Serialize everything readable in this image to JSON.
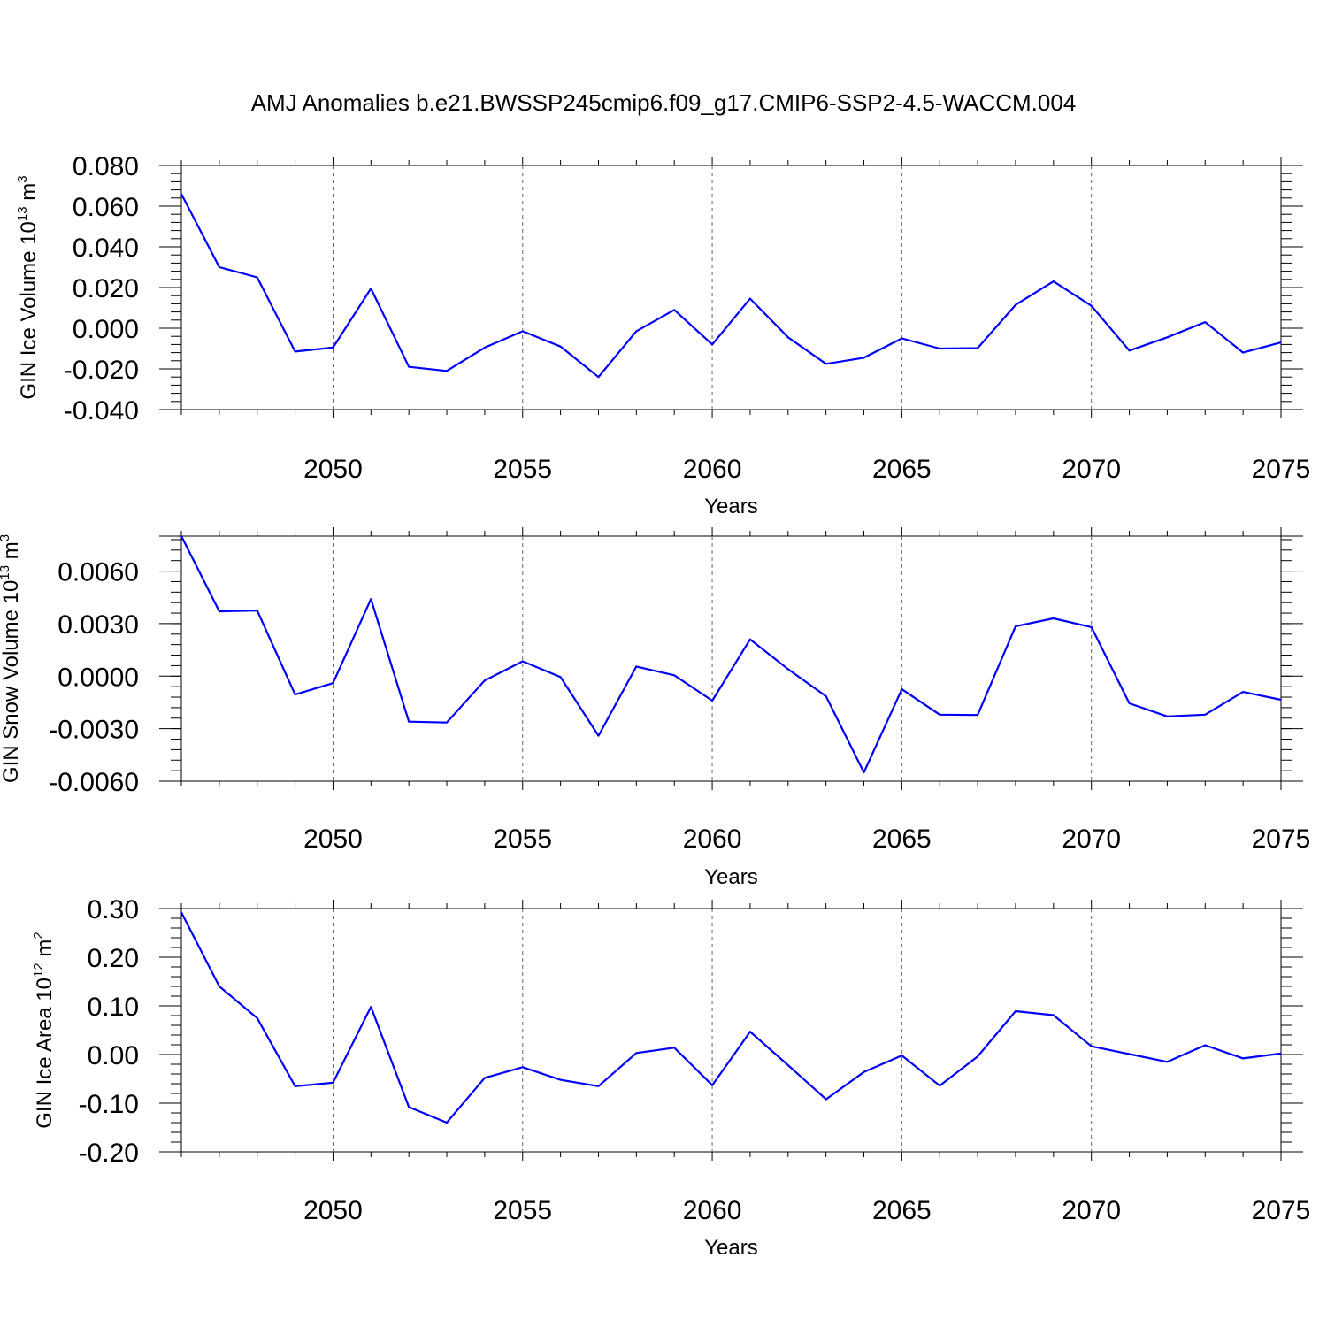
{
  "title": "AMJ Anomalies b.e21.BWSSP245cmip6.f09_g17.CMIP6-SSP2-4.5-WACCM.004",
  "line_color": "#0000ff",
  "chart_data": [
    {
      "type": "line",
      "ylabel_main": "GIN Ice Volume 10",
      "ylabel_exp": "13",
      "ylabel_unit": "m",
      "ylabel_unit_exp": "3",
      "xlabel": "Years",
      "xlim": [
        2046,
        2075
      ],
      "ylim": [
        -0.04,
        0.08
      ],
      "yticks": [
        0.08,
        0.06,
        0.04,
        0.02,
        0.0,
        -0.02,
        -0.04
      ],
      "ytick_labels": [
        "0.080",
        "0.060",
        "0.040",
        "0.020",
        "0.000",
        "-0.020",
        "-0.040"
      ],
      "xticks": [
        2050,
        2055,
        2060,
        2065,
        2070,
        2075
      ],
      "xtick_labels": [
        "2050",
        "2055",
        "2060",
        "2065",
        "2070",
        "2075"
      ],
      "x": [
        2046,
        2047,
        2048,
        2049,
        2050,
        2051,
        2052,
        2053,
        2054,
        2055,
        2056,
        2057,
        2058,
        2059,
        2060,
        2061,
        2062,
        2063,
        2064,
        2065,
        2066,
        2067,
        2068,
        2069,
        2070,
        2071,
        2072,
        2073,
        2074,
        2075
      ],
      "values": [
        0.066,
        0.03,
        0.025,
        -0.0115,
        -0.0095,
        0.0195,
        -0.019,
        -0.021,
        -0.0095,
        -0.0015,
        -0.009,
        -0.024,
        -0.0015,
        0.009,
        -0.008,
        0.0145,
        -0.0045,
        -0.0175,
        -0.0145,
        -0.005,
        -0.01,
        -0.0098,
        0.0115,
        0.023,
        0.011,
        -0.011,
        -0.0045,
        0.003,
        -0.012,
        -0.007
      ]
    },
    {
      "type": "line",
      "ylabel_main": "GIN Snow Volume 10",
      "ylabel_exp": "13",
      "ylabel_unit": "m",
      "ylabel_unit_exp": "3",
      "xlabel": "Years",
      "xlim": [
        2046,
        2075
      ],
      "ylim": [
        -0.006,
        0.008
      ],
      "yticks": [
        0.006,
        0.003,
        0.0,
        -0.003,
        -0.006
      ],
      "ytick_labels": [
        "0.0060",
        "0.0030",
        "0.0000",
        "-0.0030",
        "-0.0060"
      ],
      "xticks": [
        2050,
        2055,
        2060,
        2065,
        2070,
        2075
      ],
      "xtick_labels": [
        "2050",
        "2055",
        "2060",
        "2065",
        "2070",
        "2075"
      ],
      "x": [
        2046,
        2047,
        2048,
        2049,
        2050,
        2051,
        2052,
        2053,
        2054,
        2055,
        2056,
        2057,
        2058,
        2059,
        2060,
        2061,
        2062,
        2063,
        2064,
        2065,
        2066,
        2067,
        2068,
        2069,
        2070,
        2071,
        2072,
        2073,
        2074,
        2075
      ],
      "values": [
        0.008,
        0.0037,
        0.00375,
        -0.00105,
        -0.0004,
        0.0044,
        -0.0026,
        -0.00265,
        -0.00025,
        0.00085,
        -5e-05,
        -0.0034,
        0.00055,
        5e-05,
        -0.0014,
        0.0021,
        0.0004,
        -0.00115,
        -0.0055,
        -0.00075,
        -0.0022,
        -0.00222,
        0.00285,
        0.0033,
        0.0028,
        -0.00155,
        -0.0023,
        -0.0022,
        -0.0009,
        -0.00135
      ]
    },
    {
      "type": "line",
      "ylabel_main": "GIN Ice Area 10",
      "ylabel_exp": "12",
      "ylabel_unit": "m",
      "ylabel_unit_exp": "2",
      "xlabel": "Years",
      "xlim": [
        2046,
        2075
      ],
      "ylim": [
        -0.2,
        0.3
      ],
      "yticks": [
        0.3,
        0.2,
        0.1,
        0.0,
        -0.1,
        -0.2
      ],
      "ytick_labels": [
        "0.30",
        "0.20",
        "0.10",
        "0.00",
        "-0.10",
        "-0.20"
      ],
      "xticks": [
        2050,
        2055,
        2060,
        2065,
        2070,
        2075
      ],
      "xtick_labels": [
        "2050",
        "2055",
        "2060",
        "2065",
        "2070",
        "2075"
      ],
      "x": [
        2046,
        2047,
        2048,
        2049,
        2050,
        2051,
        2052,
        2053,
        2054,
        2055,
        2056,
        2057,
        2058,
        2059,
        2060,
        2061,
        2062,
        2063,
        2064,
        2065,
        2066,
        2067,
        2068,
        2069,
        2070,
        2071,
        2072,
        2073,
        2074,
        2075
      ],
      "values": [
        0.292,
        0.14,
        0.075,
        -0.065,
        -0.058,
        0.098,
        -0.108,
        -0.14,
        -0.048,
        -0.026,
        -0.052,
        -0.065,
        0.003,
        0.014,
        -0.063,
        0.047,
        -0.022,
        -0.092,
        -0.036,
        -0.002,
        -0.064,
        -0.004,
        0.089,
        0.081,
        0.017,
        0.001,
        -0.015,
        0.019,
        -0.008,
        0.002
      ]
    }
  ]
}
